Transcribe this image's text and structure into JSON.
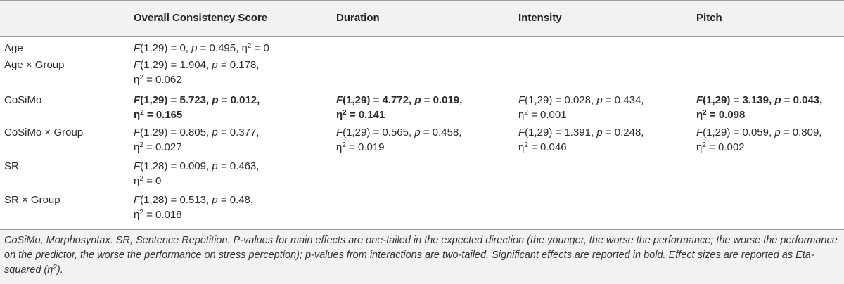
{
  "header": {
    "col0": "",
    "col1": "Overall Consistency Score",
    "col2": "Duration",
    "col3": "Intensity",
    "col4": "Pitch"
  },
  "rows": [
    {
      "label": "Age",
      "c1": {
        "l1a": "F",
        "l1b": "(1,29) = 0, ",
        "l1c": "p",
        "l1d": " = 0.495, η",
        "l1e": "2",
        "l1f": " = 0",
        "bold": false
      }
    },
    {
      "label": "Age × Group",
      "c1": {
        "l1a": "F",
        "l1b": "(1,29) = 1.904, ",
        "l1c": "p",
        "l1d": " = 0.178,",
        "l2a": "η",
        "l2b": "2",
        "l2c": " = 0.062",
        "bold": false
      }
    },
    {
      "label": "CoSiMo",
      "c1": {
        "l1a": "F",
        "l1b": "(1,29) = 5.723, ",
        "l1c": "p",
        "l1d": " = 0.012,",
        "l2a": "η",
        "l2b": "2",
        "l2c": " = 0.165",
        "bold": true
      },
      "c2": {
        "l1a": "F",
        "l1b": "(1,29) = 4.772, ",
        "l1c": "p",
        "l1d": " = 0.019,",
        "l2a": "η",
        "l2b": "2",
        "l2c": " = 0.141",
        "bold": true
      },
      "c3": {
        "l1a": "F",
        "l1b": "(1,29) = 0.028, ",
        "l1c": "p",
        "l1d": " = 0.434,",
        "l2a": "η",
        "l2b": "2",
        "l2c": " = 0.001",
        "bold": false
      },
      "c4": {
        "l1a": "F",
        "l1b": "(1,29) = 3.139, ",
        "l1c": "p",
        "l1d": " = 0.043,",
        "l2a": "η",
        "l2b": "2",
        "l2c": " = 0.098",
        "bold": true
      }
    },
    {
      "label": "CoSiMo × Group",
      "c1": {
        "l1a": "F",
        "l1b": "(1,29) = 0.805, ",
        "l1c": "p",
        "l1d": " = 0.377,",
        "l2a": "η",
        "l2b": "2",
        "l2c": " = 0.027",
        "bold": false
      },
      "c2": {
        "l1a": "F",
        "l1b": "(1,29) = 0.565, ",
        "l1c": "p",
        "l1d": " = 0.458,",
        "l2a": "η",
        "l2b": "2",
        "l2c": " = 0.019",
        "bold": false
      },
      "c3": {
        "l1a": "F",
        "l1b": "(1,29) = 1.391, ",
        "l1c": "p",
        "l1d": " = 0.248,",
        "l2a": "η",
        "l2b": "2",
        "l2c": " = 0.046",
        "bold": false
      },
      "c4": {
        "l1a": "F",
        "l1b": "(1,29) = 0.059, ",
        "l1c": "p",
        "l1d": " = 0.809,",
        "l2a": "η",
        "l2b": "2",
        "l2c": " = 0.002",
        "bold": false
      }
    },
    {
      "label": "SR",
      "c1": {
        "l1a": "F",
        "l1b": "(1,28) = 0.009, ",
        "l1c": "p",
        "l1d": " = 0.463,",
        "l2a": "η",
        "l2b": "2",
        "l2c": " = 0",
        "bold": false
      }
    },
    {
      "label": "SR × Group",
      "c1": {
        "l1a": "F",
        "l1b": "(1,28) = 0.513, ",
        "l1c": "p",
        "l1d": " = 0.48,",
        "l2a": "η",
        "l2b": "2",
        "l2c": " = 0.018",
        "bold": false
      }
    }
  ],
  "footnote": {
    "part1": "CoSiMo, Morphosyntax. SR, Sentence Repetition. P-values for main effects are one-tailed in the expected direction (the younger, the worse the performance; the worse the performance on the predictor, the worse the performance on stress perception); p-values from interactions are two-tailed. Significant effects are reported in bold. Effect sizes are reported as Eta-squared (η",
    "sup": "2",
    "part2": ")."
  }
}
